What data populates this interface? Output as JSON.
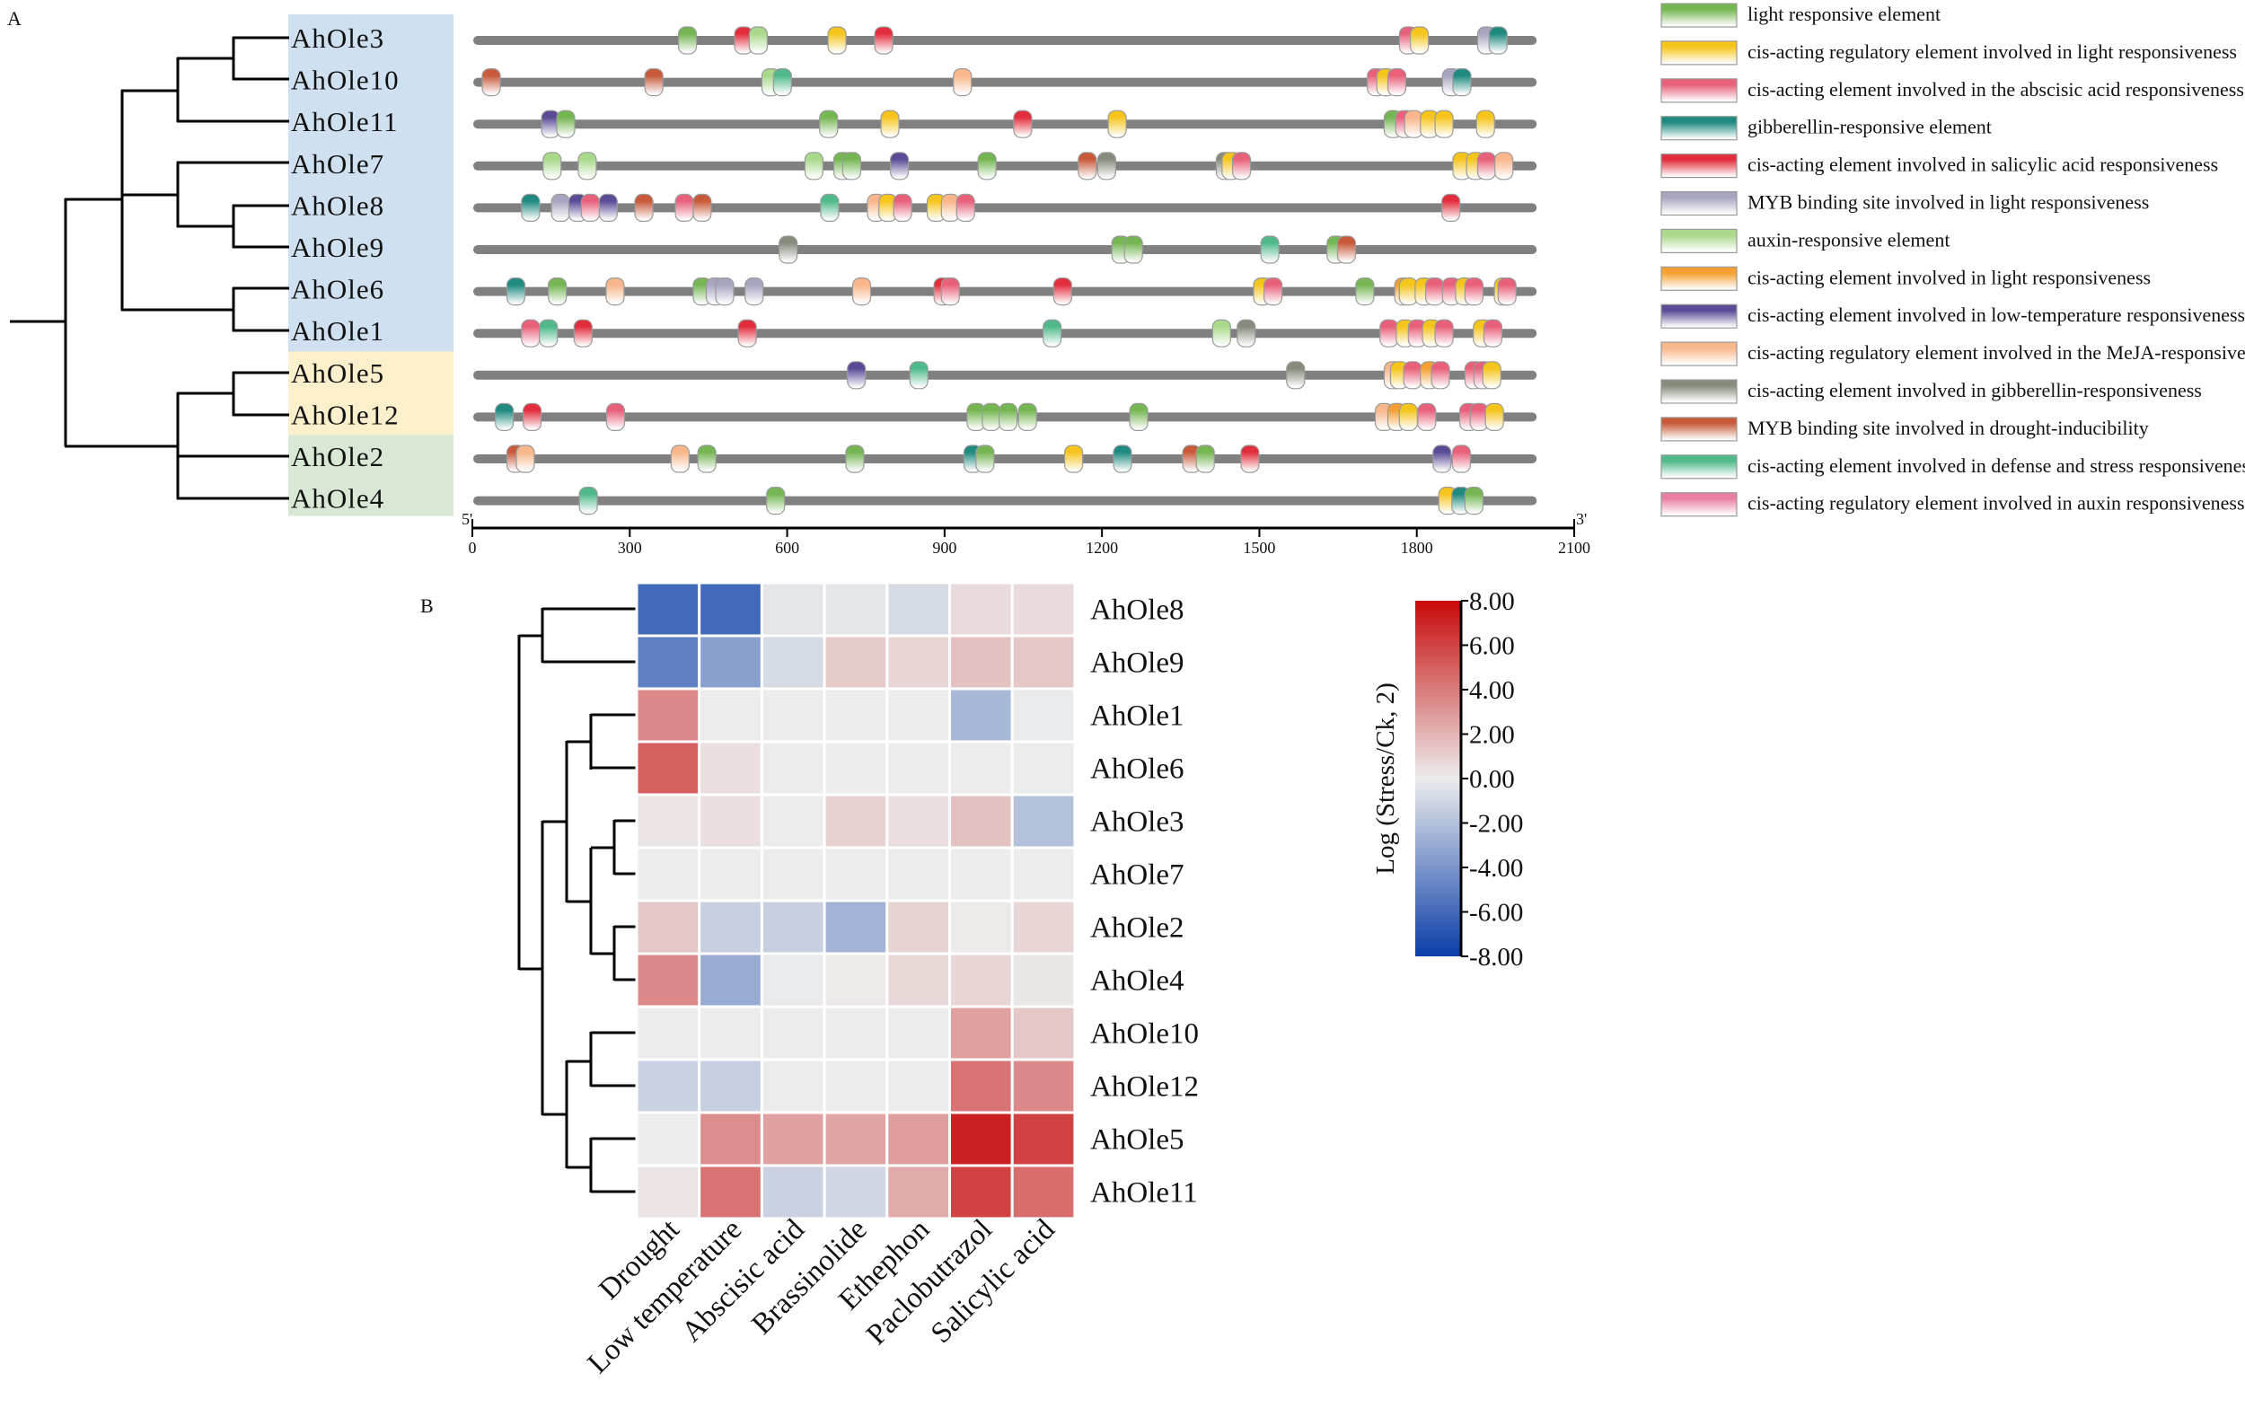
{
  "panel_a": {
    "label": "A",
    "axis": {
      "start_label": "5'",
      "end_label": "3'",
      "ticks": [
        0,
        300,
        600,
        900,
        1200,
        1500,
        1800,
        2100
      ],
      "range": [
        0,
        2100
      ],
      "sequence_length": 2020
    },
    "groups": [
      {
        "members": [
          "AhOle3",
          "AhOle10",
          "AhOle11",
          "AhOle7",
          "AhOle8",
          "AhOle9",
          "AhOle6",
          "AhOle1"
        ],
        "color": "#cfe0f1"
      },
      {
        "members": [
          "AhOle5",
          "AhOle12"
        ],
        "color": "#fcf0cc"
      },
      {
        "members": [
          "AhOle2",
          "AhOle4"
        ],
        "color": "#d9e8d5"
      }
    ],
    "legend": [
      {
        "label": "light responsive element",
        "color": "#74b652"
      },
      {
        "label": "cis-acting regulatory element involved in light responsiveness",
        "color": "#f5c51c"
      },
      {
        "label": "cis-acting element involved in the abscisic acid responsiveness",
        "color": "#e8607a"
      },
      {
        "label": "gibberellin-responsive element",
        "color": "#1f8a80"
      },
      {
        "label": "cis-acting element involved in salicylic acid responsiveness",
        "color": "#e22d3c"
      },
      {
        "label": "MYB binding site involved in light responsiveness",
        "color": "#a7a4c0"
      },
      {
        "label": "auxin-responsive element",
        "color": "#a9d98c"
      },
      {
        "label": "cis-acting element involved in light responsiveness",
        "color": "#f5a030"
      },
      {
        "label": "cis-acting element involved in low-temperature responsiveness",
        "color": "#5c4a96"
      },
      {
        "label": "cis-acting regulatory element involved in the MeJA-responsiveness",
        "color": "#f8b68a"
      },
      {
        "label": "cis-acting element involved in gibberellin-responsiveness",
        "color": "#858c7c"
      },
      {
        "label": "MYB binding site involved in drought-inducibility",
        "color": "#c85a3a"
      },
      {
        "label": "cis-acting element involved in defense and stress responsiveness",
        "color": "#4fb98a"
      },
      {
        "label": "cis-acting regulatory element involved in auxin responsiveness",
        "color": "#e97fa3"
      }
    ],
    "genes": [
      {
        "name": "AhOle3",
        "elements": [
          [
            410,
            0
          ],
          [
            517,
            4
          ],
          [
            545,
            6
          ],
          [
            695,
            1
          ],
          [
            784,
            4
          ],
          [
            1784,
            2
          ],
          [
            1805,
            1
          ],
          [
            1933,
            5
          ],
          [
            1955,
            3
          ]
        ]
      },
      {
        "name": "AhOle10",
        "elements": [
          [
            36,
            11
          ],
          [
            346,
            11
          ],
          [
            569,
            6
          ],
          [
            591,
            12
          ],
          [
            934,
            9
          ],
          [
            1723,
            2
          ],
          [
            1741,
            1
          ],
          [
            1762,
            2
          ],
          [
            1866,
            5
          ],
          [
            1886,
            3
          ]
        ]
      },
      {
        "name": "AhOle11",
        "elements": [
          [
            149,
            8
          ],
          [
            178,
            0
          ],
          [
            679,
            0
          ],
          [
            796,
            1
          ],
          [
            1049,
            4
          ],
          [
            1229,
            1
          ],
          [
            1755,
            0
          ],
          [
            1777,
            2
          ],
          [
            1794,
            9
          ],
          [
            1824,
            1
          ],
          [
            1852,
            1
          ],
          [
            1931,
            1
          ]
        ]
      },
      {
        "name": "AhOle7",
        "elements": [
          [
            152,
            6
          ],
          [
            219,
            6
          ],
          [
            651,
            6
          ],
          [
            706,
            0
          ],
          [
            723,
            0
          ],
          [
            814,
            8
          ],
          [
            981,
            0
          ],
          [
            1172,
            11
          ],
          [
            1209,
            10
          ],
          [
            1435,
            10
          ],
          [
            1446,
            1
          ],
          [
            1466,
            2
          ],
          [
            1886,
            1
          ],
          [
            1912,
            1
          ],
          [
            1933,
            2
          ],
          [
            1966,
            9
          ]
        ]
      },
      {
        "name": "AhOle8",
        "elements": [
          [
            111,
            3
          ],
          [
            168,
            5
          ],
          [
            201,
            8
          ],
          [
            225,
            2
          ],
          [
            259,
            8
          ],
          [
            327,
            11
          ],
          [
            404,
            2
          ],
          [
            438,
            11
          ],
          [
            681,
            12
          ],
          [
            770,
            9
          ],
          [
            792,
            1
          ],
          [
            820,
            2
          ],
          [
            884,
            1
          ],
          [
            911,
            9
          ],
          [
            940,
            2
          ],
          [
            1865,
            4
          ]
        ]
      },
      {
        "name": "AhOle9",
        "elements": [
          [
            602,
            10
          ],
          [
            1236,
            0
          ],
          [
            1260,
            0
          ],
          [
            1520,
            12
          ],
          [
            1646,
            0
          ],
          [
            1666,
            11
          ]
        ]
      },
      {
        "name": "AhOle6",
        "elements": [
          [
            83,
            3
          ],
          [
            162,
            0
          ],
          [
            272,
            9
          ],
          [
            438,
            0
          ],
          [
            463,
            5
          ],
          [
            481,
            5
          ],
          [
            537,
            5
          ],
          [
            742,
            9
          ],
          [
            897,
            4
          ],
          [
            911,
            2
          ],
          [
            1125,
            4
          ],
          [
            1506,
            1
          ],
          [
            1526,
            2
          ],
          [
            1701,
            0
          ],
          [
            1775,
            7
          ],
          [
            1784,
            1
          ],
          [
            1814,
            1
          ],
          [
            1834,
            2
          ],
          [
            1866,
            2
          ],
          [
            1891,
            1
          ],
          [
            1909,
            2
          ],
          [
            1965,
            1
          ],
          [
            1972,
            2
          ]
        ]
      },
      {
        "name": "AhOle1",
        "elements": [
          [
            111,
            2
          ],
          [
            145,
            12
          ],
          [
            211,
            4
          ],
          [
            524,
            4
          ],
          [
            1105,
            12
          ],
          [
            1428,
            6
          ],
          [
            1475,
            10
          ],
          [
            1747,
            2
          ],
          [
            1778,
            1
          ],
          [
            1801,
            2
          ],
          [
            1828,
            1
          ],
          [
            1852,
            2
          ],
          [
            1925,
            1
          ],
          [
            1945,
            2
          ]
        ]
      },
      {
        "name": "AhOle5",
        "elements": [
          [
            732,
            8
          ],
          [
            851,
            12
          ],
          [
            1569,
            10
          ],
          [
            1755,
            9
          ],
          [
            1767,
            1
          ],
          [
            1792,
            2
          ],
          [
            1824,
            7
          ],
          [
            1845,
            2
          ],
          [
            1909,
            2
          ],
          [
            1926,
            2
          ],
          [
            1943,
            1
          ]
        ]
      },
      {
        "name": "AhOle12",
        "elements": [
          [
            61,
            3
          ],
          [
            114,
            4
          ],
          [
            273,
            2
          ],
          [
            960,
            0
          ],
          [
            989,
            0
          ],
          [
            1021,
            0
          ],
          [
            1058,
            0
          ],
          [
            1270,
            0
          ],
          [
            1738,
            9
          ],
          [
            1762,
            7
          ],
          [
            1784,
            1
          ],
          [
            1819,
            2
          ],
          [
            1899,
            2
          ],
          [
            1919,
            2
          ],
          [
            1948,
            1
          ]
        ]
      },
      {
        "name": "AhOle2",
        "elements": [
          [
            83,
            11
          ],
          [
            101,
            9
          ],
          [
            396,
            9
          ],
          [
            447,
            0
          ],
          [
            729,
            0
          ],
          [
            954,
            3
          ],
          [
            977,
            0
          ],
          [
            1146,
            1
          ],
          [
            1239,
            3
          ],
          [
            1371,
            11
          ],
          [
            1397,
            0
          ],
          [
            1482,
            4
          ],
          [
            1848,
            8
          ],
          [
            1885,
            2
          ]
        ]
      },
      {
        "name": "AhOle4",
        "elements": [
          [
            221,
            12
          ],
          [
            578,
            0
          ],
          [
            1859,
            1
          ],
          [
            1884,
            3
          ],
          [
            1909,
            0
          ]
        ]
      }
    ]
  },
  "chart_data": {
    "type": "heatmap",
    "panel_label": "B",
    "title": "",
    "rows": [
      "AhOle8",
      "AhOle9",
      "AhOle1",
      "AhOle6",
      "AhOle3",
      "AhOle7",
      "AhOle2",
      "AhOle4",
      "AhOle10",
      "AhOle12",
      "AhOle5",
      "AhOle11"
    ],
    "columns": [
      "Drought",
      "Low temperature",
      "Abscisic acid",
      "Brassinolide",
      "Ethephon",
      "Paclobutrazol",
      "Salicylic acid"
    ],
    "values": [
      [
        -6.0,
        -6.0,
        -0.3,
        -0.3,
        -0.8,
        0.6,
        0.6
      ],
      [
        -5.0,
        -3.5,
        -0.8,
        1.2,
        0.8,
        1.5,
        1.3
      ],
      [
        3.5,
        0,
        0,
        0,
        0,
        -2.4,
        -0.1
      ],
      [
        5.0,
        0.5,
        0,
        0,
        0,
        0,
        0
      ],
      [
        0.3,
        0.5,
        0,
        1.0,
        0.5,
        1.5,
        -2.0
      ],
      [
        0,
        0,
        0,
        0,
        0,
        0,
        0
      ],
      [
        1.3,
        -1.3,
        -1.3,
        -2.6,
        0.9,
        0.1,
        0.8
      ],
      [
        3.5,
        -3.0,
        -0.1,
        0.1,
        0.7,
        0.8,
        0.2
      ],
      [
        0,
        0,
        0,
        0,
        0,
        2.7,
        1.3
      ],
      [
        -1.2,
        -1.3,
        0,
        0,
        0,
        4.3,
        3.5
      ],
      [
        0,
        3.4,
        2.7,
        2.5,
        2.8,
        7.3,
        6.0
      ],
      [
        0.3,
        4.3,
        -1.2,
        -1.0,
        2.3,
        6.0,
        4.5
      ]
    ],
    "colorbar": {
      "label": "Log (Stress/Ck, 2)",
      "range": [
        -8,
        8
      ],
      "ticks": [
        "8.00",
        "6.00",
        "4.00",
        "2.00",
        "0.00",
        "-2.00",
        "-4.00",
        "-6.00",
        "-8.00"
      ],
      "colors": {
        "low": "#0a3ea8",
        "mid": "#ececec",
        "high": "#c80a0a"
      }
    }
  }
}
